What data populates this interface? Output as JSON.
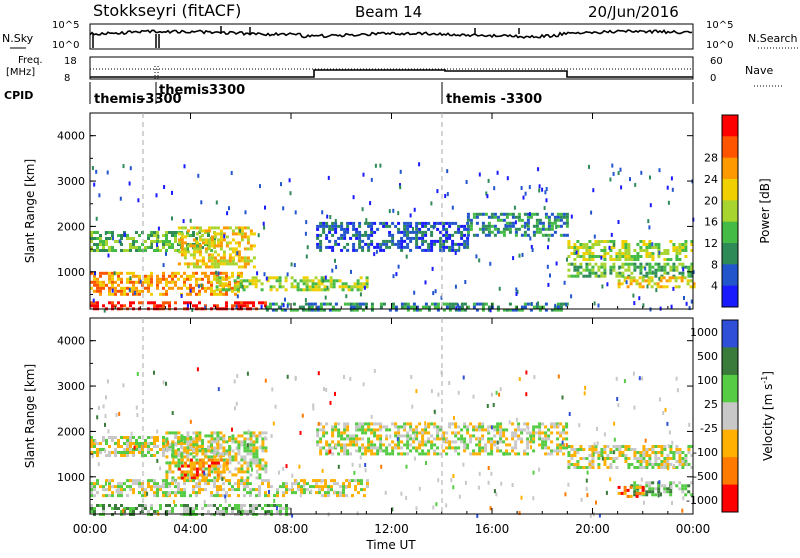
{
  "header": {
    "station": "Stokkseyri (fitACF)",
    "beam": "Beam 14",
    "date": "20/Jun/2016"
  },
  "summary_panels": {
    "nsky_label": "N.Sky",
    "nsky_ticks": [
      "10^5",
      "10^0"
    ],
    "nsearch_label": "N.Search",
    "nsearch_ticks": [
      "10^5",
      "10^0"
    ],
    "freq_label": "Freq.",
    "freq_unit": "[MHz]",
    "freq_ticks": [
      "18",
      "8"
    ],
    "nave_label": "Nave",
    "nave_ticks": [
      "60",
      "0"
    ],
    "cpid_label": "CPID",
    "cpid_entries": [
      {
        "text": "themis",
        "t": 0.1
      },
      {
        "text": "-3300",
        "t": 1.2
      },
      {
        "text": "themis",
        "t": 2.1
      },
      {
        "text": "3300",
        "t": 3.6
      },
      {
        "text": "themis -3300",
        "t": 14.1
      }
    ]
  },
  "colors": {
    "power": [
      "#1a1aff",
      "#2255cc",
      "#2e8b57",
      "#44bb44",
      "#a8d430",
      "#f0d000",
      "#ff9900",
      "#ff5500",
      "#ff0000"
    ],
    "velocity": [
      "#2f4fd8",
      "#3a7a3a",
      "#55cc44",
      "#c8c8c8",
      "#ffb000",
      "#ff7a00",
      "#ff0000"
    ]
  },
  "chart_data": [
    {
      "type": "heatmap",
      "name": "power",
      "ylabel": "Slant Range [km]",
      "xlabel": "",
      "xlim": [
        "00:00",
        "24:00"
      ],
      "ylim": [
        180,
        4500
      ],
      "yticks": [
        "1000",
        "2000",
        "3000",
        "4000"
      ],
      "colorbar_label": "Power [dB]",
      "colorbar_ticks": [
        "4",
        "8",
        "12",
        "16",
        "20",
        "24",
        "28"
      ],
      "bands": [
        {
          "t0": 0.0,
          "t1": 5.0,
          "r0": 1450,
          "r1": 1900,
          "level": 3
        },
        {
          "t0": 3.5,
          "t1": 6.5,
          "r0": 1100,
          "r1": 2000,
          "level": 5
        },
        {
          "t0": 0.0,
          "t1": 6.0,
          "r0": 500,
          "r1": 1000,
          "level": 6
        },
        {
          "t0": 5.0,
          "t1": 11.0,
          "r0": 600,
          "r1": 900,
          "level": 4
        },
        {
          "t0": 0.0,
          "t1": 7.0,
          "r0": 180,
          "r1": 350,
          "level": 8
        },
        {
          "t0": 7.0,
          "t1": 19.0,
          "r0": 180,
          "r1": 320,
          "level": 2
        },
        {
          "t0": 9.0,
          "t1": 15.0,
          "r0": 1500,
          "r1": 2100,
          "level": 1
        },
        {
          "t0": 15.0,
          "t1": 19.0,
          "r0": 1800,
          "r1": 2300,
          "level": 2
        },
        {
          "t0": 19.0,
          "t1": 24.0,
          "r0": 1300,
          "r1": 1700,
          "level": 4
        },
        {
          "t0": 19.0,
          "t1": 24.0,
          "r0": 900,
          "r1": 1200,
          "level": 3
        },
        {
          "t0": 21.0,
          "t1": 24.0,
          "r0": 650,
          "r1": 900,
          "level": 5
        }
      ]
    },
    {
      "type": "heatmap",
      "name": "velocity",
      "ylabel": "Slant Range [km]",
      "xlabel": "Time UT",
      "xlim": [
        "00:00",
        "24:00"
      ],
      "ylim": [
        180,
        4500
      ],
      "xticks": [
        "00:00",
        "04:00",
        "08:00",
        "12:00",
        "16:00",
        "20:00",
        "00:00"
      ],
      "yticks": [
        "1000",
        "2000",
        "3000",
        "4000"
      ],
      "colorbar_label": "Velocity [m s^-1]",
      "colorbar_ticks": [
        "1000",
        "500",
        "100",
        "25",
        "-25",
        "-100",
        "-500",
        "-1000"
      ],
      "bands": [
        {
          "t0": 0.0,
          "t1": 5.5,
          "r0": 1450,
          "r1": 1900,
          "level": 3
        },
        {
          "t0": 3.0,
          "t1": 7.0,
          "r0": 1000,
          "r1": 2000,
          "level": 3
        },
        {
          "t0": 3.5,
          "t1": 5.5,
          "r0": 950,
          "r1": 1400,
          "level": 5
        },
        {
          "t0": 0.0,
          "t1": 11.0,
          "r0": 600,
          "r1": 950,
          "level": 3
        },
        {
          "t0": 0.0,
          "t1": 8.0,
          "r0": 180,
          "r1": 400,
          "level": 2
        },
        {
          "t0": 9.0,
          "t1": 19.0,
          "r0": 1500,
          "r1": 2200,
          "level": 3
        },
        {
          "t0": 19.0,
          "t1": 24.0,
          "r0": 1200,
          "r1": 1700,
          "level": 3
        },
        {
          "t0": 21.5,
          "t1": 24.0,
          "r0": 600,
          "r1": 900,
          "level": 2
        },
        {
          "t0": 21.0,
          "t1": 22.0,
          "r0": 550,
          "r1": 800,
          "level": 5
        }
      ]
    }
  ]
}
